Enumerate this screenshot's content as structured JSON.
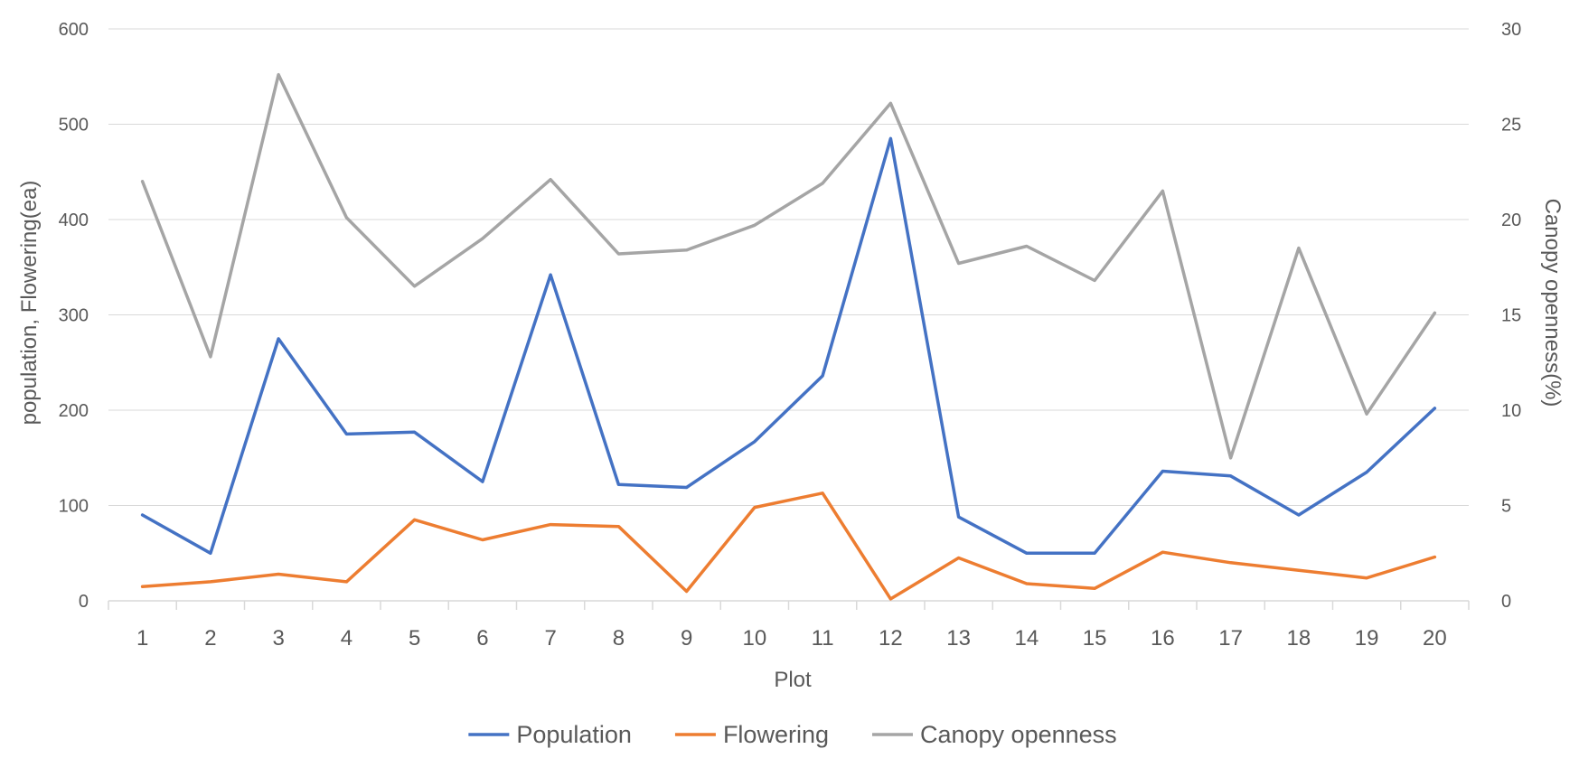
{
  "chart_data": {
    "type": "line",
    "title": "",
    "xlabel": "Plot",
    "ylabel_left": "population, Flowering(ea)",
    "ylabel_right": "Canopy openness(%)",
    "categories": [
      "1",
      "2",
      "3",
      "4",
      "5",
      "6",
      "7",
      "8",
      "9",
      "10",
      "11",
      "12",
      "13",
      "14",
      "15",
      "16",
      "17",
      "18",
      "19",
      "20"
    ],
    "y_left": {
      "min": 0,
      "max": 600,
      "ticks": [
        0,
        100,
        200,
        300,
        400,
        500,
        600
      ]
    },
    "y_right": {
      "min": 0,
      "max": 30,
      "ticks": [
        0,
        5,
        10,
        15,
        20,
        25,
        30
      ]
    },
    "grid": true,
    "legend_position": "bottom",
    "series": [
      {
        "name": "Population",
        "axis": "left",
        "color": "#4472C4",
        "values": [
          90,
          50,
          275,
          175,
          177,
          125,
          342,
          122,
          119,
          167,
          236,
          485,
          88,
          50,
          50,
          136,
          131,
          90,
          135,
          202
        ]
      },
      {
        "name": "Flowering",
        "axis": "left",
        "color": "#ED7D31",
        "values": [
          15,
          20,
          28,
          20,
          85,
          64,
          80,
          78,
          10,
          98,
          113,
          2,
          45,
          18,
          13,
          51,
          40,
          32,
          24,
          46
        ]
      },
      {
        "name": "Canopy openness",
        "axis": "right",
        "color": "#A5A5A5",
        "values": [
          22,
          12.8,
          27.6,
          20.1,
          16.5,
          19,
          22.1,
          18.2,
          18.4,
          19.7,
          21.9,
          26.1,
          17.7,
          18.6,
          16.8,
          21.5,
          7.5,
          18.5,
          9.8,
          15.1
        ]
      }
    ]
  }
}
